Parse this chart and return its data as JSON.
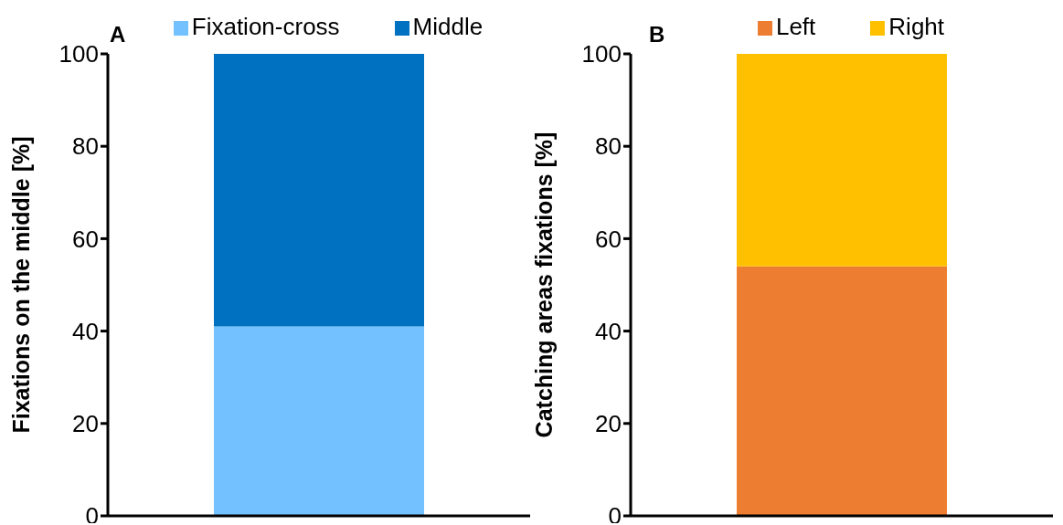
{
  "chart_data": [
    {
      "type": "bar",
      "title": "A",
      "ylabel": "Fixations on the middle [%]",
      "categories": [
        null
      ],
      "stacked": true,
      "ylim": [
        0,
        100
      ],
      "yticks": [
        0,
        20,
        40,
        60,
        80,
        100
      ],
      "legend": "top",
      "grid": false,
      "tick_labels": "y",
      "series": [
        {
          "name": "Fixation-cross",
          "color": "#74c1ff",
          "values": [
            41
          ]
        },
        {
          "name": "Middle",
          "color": "#0070c0",
          "values": [
            59
          ]
        }
      ]
    },
    {
      "type": "bar",
      "title": "B",
      "ylabel": "Catching areas fixations [%]",
      "categories": [
        null
      ],
      "stacked": true,
      "ylim": [
        0,
        100
      ],
      "yticks": [
        0,
        20,
        40,
        60,
        80,
        100
      ],
      "legend": "top",
      "grid": false,
      "tick_labels": "y",
      "series": [
        {
          "name": "Left",
          "color": "#ed7d31",
          "values": [
            54
          ]
        },
        {
          "name": "Right",
          "color": "#ffc000",
          "values": [
            46
          ]
        }
      ]
    }
  ]
}
